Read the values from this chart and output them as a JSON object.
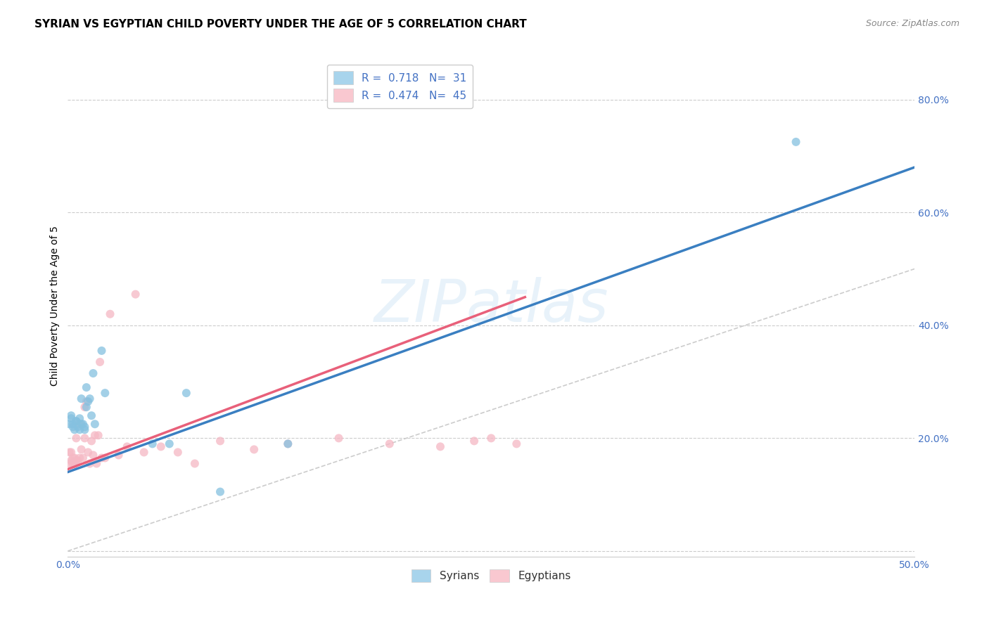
{
  "title": "SYRIAN VS EGYPTIAN CHILD POVERTY UNDER THE AGE OF 5 CORRELATION CHART",
  "source": "Source: ZipAtlas.com",
  "ylabel": "Child Poverty Under the Age of 5",
  "xlim": [
    0.0,
    0.5
  ],
  "ylim": [
    -0.01,
    0.88
  ],
  "xticks": [
    0.0,
    0.05,
    0.1,
    0.15,
    0.2,
    0.25,
    0.3,
    0.35,
    0.4,
    0.45,
    0.5
  ],
  "xtick_labels": [
    "0.0%",
    "",
    "",
    "",
    "",
    "",
    "",
    "",
    "",
    "",
    "50.0%"
  ],
  "ytick_positions": [
    0.0,
    0.2,
    0.4,
    0.6,
    0.8
  ],
  "ytick_labels": [
    "",
    "20.0%",
    "40.0%",
    "60.0%",
    "80.0%"
  ],
  "grid_color": "#cccccc",
  "background_color": "#ffffff",
  "watermark_text": "ZIPatlas",
  "legend_R_syrian": "0.718",
  "legend_N_syrian": "31",
  "legend_R_egyptian": "0.474",
  "legend_N_egyptian": "45",
  "syrian_scatter_color": "#85c1e0",
  "egyptian_scatter_color": "#f5b8c4",
  "syrian_line_color": "#3a7fc1",
  "egyptian_line_color": "#e8607a",
  "syrian_legend_color": "#a8d4ec",
  "egyptian_legend_color": "#f9c8d0",
  "diagonal_color": "#cccccc",
  "syrian_line_x": [
    0.0,
    0.5
  ],
  "syrian_line_y": [
    0.14,
    0.68
  ],
  "egyptian_line_x": [
    0.0,
    0.27
  ],
  "egyptian_line_y": [
    0.145,
    0.45
  ],
  "syrian_x": [
    0.001,
    0.002,
    0.002,
    0.003,
    0.003,
    0.004,
    0.005,
    0.005,
    0.006,
    0.007,
    0.007,
    0.008,
    0.008,
    0.009,
    0.01,
    0.01,
    0.011,
    0.011,
    0.012,
    0.013,
    0.014,
    0.015,
    0.016,
    0.02,
    0.022,
    0.05,
    0.06,
    0.07,
    0.09,
    0.13,
    0.43
  ],
  "syrian_y": [
    0.225,
    0.235,
    0.24,
    0.22,
    0.225,
    0.215,
    0.23,
    0.23,
    0.22,
    0.215,
    0.235,
    0.27,
    0.225,
    0.225,
    0.215,
    0.22,
    0.29,
    0.255,
    0.265,
    0.27,
    0.24,
    0.315,
    0.225,
    0.355,
    0.28,
    0.19,
    0.19,
    0.28,
    0.105,
    0.19,
    0.725
  ],
  "egyptian_x": [
    0.001,
    0.001,
    0.002,
    0.002,
    0.003,
    0.003,
    0.004,
    0.004,
    0.005,
    0.005,
    0.006,
    0.007,
    0.007,
    0.008,
    0.009,
    0.01,
    0.01,
    0.011,
    0.012,
    0.013,
    0.014,
    0.015,
    0.016,
    0.017,
    0.018,
    0.019,
    0.02,
    0.022,
    0.025,
    0.03,
    0.035,
    0.04,
    0.045,
    0.055,
    0.065,
    0.075,
    0.09,
    0.11,
    0.13,
    0.16,
    0.19,
    0.22,
    0.24,
    0.25,
    0.265
  ],
  "egyptian_y": [
    0.175,
    0.155,
    0.16,
    0.175,
    0.155,
    0.165,
    0.155,
    0.165,
    0.2,
    0.16,
    0.16,
    0.225,
    0.165,
    0.18,
    0.165,
    0.255,
    0.2,
    0.265,
    0.175,
    0.155,
    0.195,
    0.17,
    0.205,
    0.155,
    0.205,
    0.335,
    0.165,
    0.165,
    0.42,
    0.17,
    0.185,
    0.455,
    0.175,
    0.185,
    0.175,
    0.155,
    0.195,
    0.18,
    0.19,
    0.2,
    0.19,
    0.185,
    0.195,
    0.2,
    0.19
  ],
  "title_fontsize": 11,
  "source_fontsize": 9,
  "ylabel_fontsize": 10,
  "tick_fontsize": 10,
  "legend_fontsize": 11,
  "marker_size": 75
}
